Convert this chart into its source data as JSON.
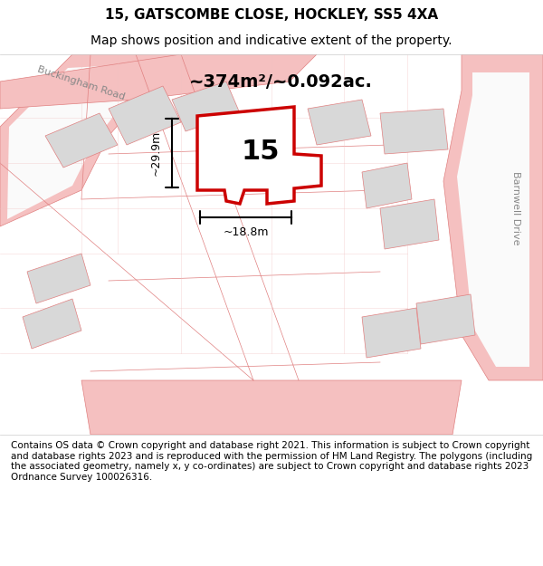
{
  "title_line1": "15, GATSCOMBE CLOSE, HOCKLEY, SS5 4XA",
  "title_line2": "Map shows position and indicative extent of the property.",
  "area_text": "~374m²/~0.092ac.",
  "dim_height": "~29.9m",
  "dim_width": "~18.8m",
  "plot_number": "15",
  "footer_text": "Contains OS data © Crown copyright and database right 2021. This information is subject to Crown copyright and database rights 2023 and is reproduced with the permission of HM Land Registry. The polygons (including the associated geometry, namely x, y co-ordinates) are subject to Crown copyright and database rights 2023 Ordnance Survey 100026316.",
  "bg_color": "#f5f5f5",
  "map_bg": "#ffffff",
  "plot_fill": "#ffffff",
  "plot_border": "#cc0000",
  "road_color": "#f5c0c0",
  "building_color": "#d8d8d8",
  "road_stroke": "#e08080",
  "street_label_buckingham": "Buckingham Road",
  "street_label_barnwell": "Barnwell Drive",
  "title_fontsize": 11,
  "subtitle_fontsize": 10,
  "footer_fontsize": 7.5
}
